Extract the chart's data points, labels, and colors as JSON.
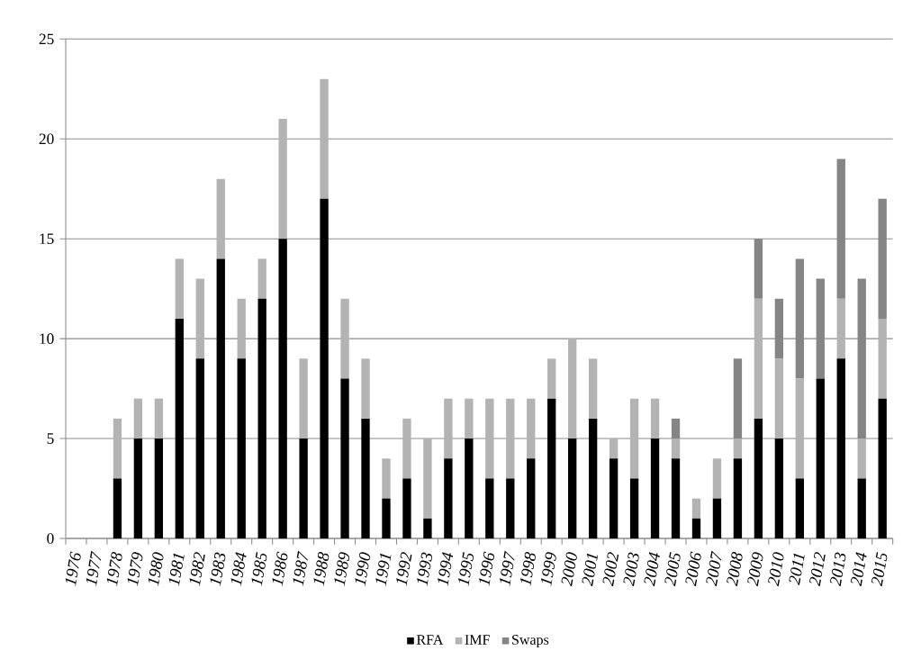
{
  "chart_data": {
    "type": "bar",
    "stacked": true,
    "categories": [
      "1976",
      "1977",
      "1978",
      "1979",
      "1980",
      "1981",
      "1982",
      "1983",
      "1984",
      "1985",
      "1986",
      "1987",
      "1988",
      "1989",
      "1990",
      "1991",
      "1992",
      "1993",
      "1994",
      "1995",
      "1996",
      "1997",
      "1998",
      "1999",
      "2000",
      "2001",
      "2002",
      "2003",
      "2004",
      "2005",
      "2006",
      "2007",
      "2008",
      "2009",
      "2010",
      "2011",
      "2012",
      "2013",
      "2014",
      "2015"
    ],
    "series": [
      {
        "name": "RFA",
        "color": "#000000",
        "values": [
          0,
          0,
          3,
          5,
          5,
          11,
          9,
          14,
          9,
          12,
          15,
          5,
          17,
          8,
          6,
          2,
          3,
          1,
          4,
          5,
          3,
          3,
          4,
          7,
          5,
          6,
          4,
          3,
          5,
          4,
          1,
          2,
          4,
          6,
          5,
          3,
          8,
          9,
          3,
          7
        ]
      },
      {
        "name": "IMF",
        "color": "#b3b3b3",
        "values": [
          0,
          0,
          3,
          2,
          2,
          3,
          4,
          4,
          3,
          2,
          6,
          4,
          6,
          4,
          3,
          2,
          3,
          4,
          3,
          2,
          4,
          4,
          3,
          2,
          5,
          3,
          1,
          4,
          2,
          1,
          1,
          2,
          1,
          6,
          4,
          5,
          0,
          3,
          2,
          4
        ]
      },
      {
        "name": "Swaps",
        "color": "#858585",
        "values": [
          0,
          0,
          0,
          0,
          0,
          0,
          0,
          0,
          0,
          0,
          0,
          0,
          0,
          0,
          0,
          0,
          0,
          0,
          0,
          0,
          0,
          0,
          0,
          0,
          0,
          0,
          0,
          0,
          0,
          1,
          0,
          0,
          4,
          3,
          3,
          6,
          5,
          7,
          8,
          6
        ]
      }
    ],
    "ylim": [
      0,
      25
    ],
    "yticks": [
      0,
      5,
      10,
      15,
      20,
      25
    ],
    "grid": "y",
    "legend": "bottom"
  }
}
